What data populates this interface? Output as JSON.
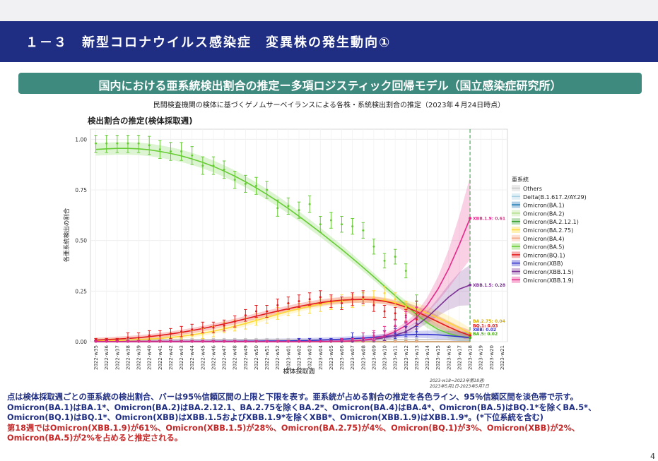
{
  "header": {
    "slide_title": "１－３　新型コロナウイルス感染症　変異株の発生動向①",
    "subtitle": "国内における亜系統検出割合の推定ー多項ロジスティック回帰モデル（国立感染症研究所）",
    "caption": "民間検査機関の検体に基づくゲノムサーベイランスによる各株・系統検出割合の推定（2023年４月24日時点）"
  },
  "chart_data": {
    "type": "line",
    "title": "検出割合の推定(検体採取週)",
    "xlabel": "検体採取週",
    "ylabel": "各亜系統検出の割合",
    "ylim": [
      0,
      1.05
    ],
    "yticks": [
      0.0,
      0.25,
      0.5,
      0.75,
      1.0
    ],
    "ytick_labels": [
      "0.00",
      "0.25",
      "0.50",
      "0.75",
      "1.00"
    ],
    "weeks": [
      "2022-w35",
      "2022-w36",
      "2022-w37",
      "2022-w38",
      "2022-w39",
      "2022-w40",
      "2022-w41",
      "2022-w42",
      "2022-w43",
      "2022-w44",
      "2022-w45",
      "2022-w46",
      "2022-w47",
      "2022-w48",
      "2022-w49",
      "2022-w50",
      "2022-w51",
      "2022-w52",
      "2023-w01",
      "2023-w02",
      "2023-w03",
      "2023-w04",
      "2023-w05",
      "2023-w06",
      "2023-w07",
      "2023-w08",
      "2023-w09",
      "2023-w10",
      "2023-w11",
      "2023-w12",
      "2023-w13",
      "2023-w14",
      "2023-w15",
      "2023-w16",
      "2023-w17",
      "2023-w18",
      "2023-w19",
      "2023-w20",
      "2023-w21"
    ],
    "observed_weeks_count": 31,
    "vline_week": "2023-w18",
    "vline_note_1": "2023-w18=2023年第18週:",
    "vline_note_2": "2023年5月1日-2023年5月7日",
    "legend_title": "亜系統",
    "series": [
      {
        "name": "Others",
        "color": "#c7c7c7",
        "estimate": [
          0.01,
          0.01,
          0.01,
          0.01,
          0.01,
          0.01,
          0.01,
          0.01,
          0.01,
          0.01,
          0.01,
          0.01,
          0.01,
          0.01,
          0.01,
          0.01,
          0.01,
          0.01,
          0.01,
          0.01,
          0.01,
          0.01,
          0.01,
          0.01,
          0.01,
          0.01,
          0.01,
          0.01,
          0.01,
          0.01,
          0.01,
          0.01,
          0.01,
          0.01,
          0.01,
          0.01
        ],
        "observed": [
          0.01,
          0.01,
          0.01,
          0.01,
          0.01,
          0.01,
          0.01,
          0.01,
          0.01,
          0.01,
          0.01,
          0.01,
          0.01,
          0.01,
          0.01,
          0.01,
          0.01,
          0.01,
          0.01,
          0.01,
          0.01,
          0.01,
          0.01,
          0.01,
          0.01,
          0.01,
          0.01,
          0.01,
          0.01,
          0.01,
          0.01
        ]
      },
      {
        "name": "Delta(B.1.617.2/AY.29)",
        "color": "#a6cee3",
        "estimate": [
          0,
          0,
          0,
          0,
          0,
          0,
          0,
          0,
          0,
          0,
          0,
          0,
          0,
          0,
          0,
          0,
          0,
          0,
          0,
          0,
          0,
          0,
          0,
          0,
          0,
          0,
          0,
          0,
          0,
          0,
          0,
          0,
          0,
          0,
          0,
          0
        ],
        "observed": [
          0,
          0,
          0,
          0,
          0,
          0,
          0,
          0,
          0,
          0,
          0,
          0,
          0,
          0,
          0,
          0,
          0,
          0,
          0,
          0,
          0,
          0,
          0,
          0,
          0,
          0,
          0,
          0,
          0,
          0,
          0
        ]
      },
      {
        "name": "Omicron(BA.1)",
        "color": "#1f78b4",
        "estimate": [
          0,
          0,
          0,
          0,
          0,
          0,
          0,
          0,
          0,
          0,
          0,
          0,
          0,
          0,
          0,
          0,
          0,
          0,
          0,
          0,
          0,
          0,
          0,
          0,
          0,
          0,
          0,
          0,
          0,
          0,
          0,
          0,
          0,
          0,
          0,
          0
        ],
        "observed": [
          0,
          0,
          0,
          0,
          0,
          0,
          0,
          0,
          0,
          0,
          0,
          0,
          0,
          0,
          0,
          0,
          0,
          0,
          0,
          0,
          0,
          0,
          0,
          0,
          0,
          0,
          0,
          0,
          0,
          0,
          0
        ]
      },
      {
        "name": "Omicron(BA.2)",
        "color": "#b2df8a",
        "estimate": [
          0,
          0,
          0,
          0,
          0,
          0,
          0,
          0,
          0,
          0,
          0,
          0,
          0,
          0,
          0,
          0,
          0,
          0,
          0,
          0,
          0,
          0,
          0,
          0,
          0,
          0,
          0,
          0,
          0,
          0,
          0,
          0,
          0,
          0,
          0,
          0
        ],
        "observed": [
          0,
          0,
          0,
          0,
          0,
          0,
          0,
          0,
          0,
          0,
          0,
          0,
          0,
          0,
          0,
          0,
          0,
          0,
          0,
          0,
          0,
          0,
          0,
          0,
          0,
          0,
          0,
          0,
          0,
          0,
          0
        ]
      },
      {
        "name": "Omicron(BA.2.12.1)",
        "color": "#33a02c",
        "estimate": [
          0,
          0,
          0,
          0,
          0,
          0,
          0,
          0,
          0,
          0,
          0,
          0,
          0,
          0,
          0,
          0,
          0,
          0,
          0,
          0,
          0,
          0,
          0,
          0,
          0,
          0,
          0,
          0,
          0,
          0,
          0,
          0,
          0,
          0,
          0,
          0
        ],
        "observed": [
          0,
          0,
          0,
          0,
          0,
          0,
          0,
          0,
          0,
          0,
          0,
          0,
          0,
          0,
          0,
          0,
          0,
          0,
          0,
          0,
          0,
          0,
          0,
          0,
          0,
          0,
          0,
          0,
          0,
          0,
          0
        ]
      },
      {
        "name": "Omicron(BA.2.75)",
        "color": "#fdd835",
        "estimate": [
          0.004,
          0.005,
          0.006,
          0.008,
          0.01,
          0.013,
          0.016,
          0.021,
          0.027,
          0.034,
          0.042,
          0.052,
          0.063,
          0.076,
          0.09,
          0.105,
          0.12,
          0.135,
          0.15,
          0.163,
          0.175,
          0.186,
          0.195,
          0.202,
          0.207,
          0.209,
          0.208,
          0.203,
          0.194,
          0.18,
          0.162,
          0.141,
          0.118,
          0.094,
          0.069,
          0.04
        ],
        "observed": [
          0.0,
          0.0,
          0.0,
          0.0,
          0.01,
          0.01,
          0.01,
          0.02,
          0.02,
          0.03,
          0.04,
          0.05,
          0.07,
          0.08,
          0.09,
          0.11,
          0.12,
          0.14,
          0.16,
          0.16,
          0.17,
          0.18,
          0.19,
          0.2,
          0.2,
          0.21,
          0.22,
          0.24,
          0.21,
          0.17,
          0.14
        ]
      },
      {
        "name": "Omicron(BA.4)",
        "color": "#f4a582",
        "estimate": [
          0,
          0,
          0,
          0,
          0,
          0,
          0,
          0,
          0,
          0,
          0,
          0,
          0,
          0,
          0,
          0,
          0,
          0,
          0,
          0,
          0,
          0,
          0,
          0,
          0,
          0,
          0,
          0,
          0,
          0,
          0,
          0,
          0,
          0,
          0,
          0
        ],
        "observed": [
          0,
          0,
          0,
          0,
          0,
          0,
          0,
          0,
          0,
          0,
          0,
          0,
          0,
          0,
          0,
          0,
          0,
          0,
          0,
          0,
          0,
          0,
          0,
          0,
          0,
          0,
          0,
          0,
          0,
          0,
          0
        ]
      },
      {
        "name": "Omicron(BA.5)",
        "color": "#66cc33",
        "estimate": [
          0.95,
          0.953,
          0.955,
          0.955,
          0.953,
          0.948,
          0.94,
          0.93,
          0.918,
          0.903,
          0.886,
          0.866,
          0.843,
          0.818,
          0.79,
          0.76,
          0.728,
          0.694,
          0.658,
          0.62,
          0.58,
          0.54,
          0.498,
          0.456,
          0.412,
          0.367,
          0.321,
          0.274,
          0.227,
          0.18,
          0.134,
          0.093,
          0.061,
          0.04,
          0.027,
          0.02
        ],
        "observed": [
          0.98,
          0.98,
          0.98,
          0.98,
          0.98,
          0.97,
          0.95,
          0.94,
          0.94,
          0.92,
          0.87,
          0.87,
          0.85,
          0.8,
          0.78,
          0.77,
          0.75,
          0.66,
          0.67,
          0.65,
          0.68,
          0.58,
          0.6,
          0.58,
          0.57,
          0.55,
          0.47,
          0.4,
          0.42,
          0.35,
          0.2
        ]
      },
      {
        "name": "Omicron(BQ.1)",
        "color": "#e31a1c",
        "estimate": [
          0.008,
          0.01,
          0.013,
          0.016,
          0.02,
          0.025,
          0.031,
          0.038,
          0.046,
          0.055,
          0.065,
          0.076,
          0.088,
          0.1,
          0.113,
          0.126,
          0.139,
          0.151,
          0.163,
          0.174,
          0.184,
          0.193,
          0.2,
          0.205,
          0.208,
          0.209,
          0.207,
          0.2,
          0.188,
          0.171,
          0.149,
          0.124,
          0.098,
          0.073,
          0.05,
          0.03
        ],
        "observed": [
          0.01,
          0.01,
          0.01,
          0.02,
          0.02,
          0.03,
          0.03,
          0.04,
          0.05,
          0.06,
          0.07,
          0.07,
          0.08,
          0.1,
          0.13,
          0.15,
          0.15,
          0.18,
          0.19,
          0.2,
          0.21,
          0.22,
          0.2,
          0.19,
          0.21,
          0.22,
          0.18,
          0.15,
          0.14,
          0.13,
          0.11
        ]
      },
      {
        "name": "Omicron(XBB)",
        "color": "#3333cc",
        "estimate": [
          0,
          0,
          0,
          0,
          0,
          0,
          0,
          0,
          0,
          0,
          0,
          0.001,
          0.001,
          0.001,
          0.002,
          0.002,
          0.003,
          0.003,
          0.004,
          0.005,
          0.006,
          0.008,
          0.01,
          0.012,
          0.015,
          0.018,
          0.022,
          0.026,
          0.03,
          0.034,
          0.036,
          0.036,
          0.034,
          0.03,
          0.025,
          0.02
        ],
        "observed": [
          0,
          0,
          0,
          0,
          0,
          0,
          0,
          0,
          0,
          0,
          0,
          0,
          0,
          0,
          0,
          0,
          0,
          0,
          0,
          0.01,
          0.01,
          0.01,
          0.01,
          0.01,
          0.02,
          0.02,
          0.02,
          0.03,
          0.04,
          0.05,
          0.05
        ]
      },
      {
        "name": "Omicron(XBB.1.5)",
        "color": "#7b3294",
        "estimate": [
          0,
          0,
          0,
          0,
          0,
          0,
          0,
          0,
          0,
          0,
          0,
          0,
          0,
          0,
          0,
          0,
          0,
          0,
          0,
          0,
          0,
          0,
          0.001,
          0.002,
          0.004,
          0.007,
          0.012,
          0.02,
          0.032,
          0.05,
          0.08,
          0.12,
          0.17,
          0.22,
          0.26,
          0.28
        ],
        "observed": [
          0,
          0,
          0,
          0,
          0,
          0,
          0,
          0,
          0,
          0,
          0,
          0,
          0,
          0,
          0,
          0,
          0,
          0,
          0,
          0,
          0,
          0,
          0,
          0,
          0,
          0.01,
          0.02,
          0.03,
          0.05,
          0.07,
          0.09
        ]
      },
      {
        "name": "Omicron(XBB.1.9)",
        "color": "#e7298a",
        "estimate": [
          0,
          0,
          0,
          0,
          0,
          0,
          0,
          0,
          0,
          0,
          0,
          0,
          0,
          0,
          0,
          0,
          0,
          0,
          0,
          0,
          0,
          0,
          0.001,
          0.002,
          0.004,
          0.008,
          0.015,
          0.028,
          0.05,
          0.08,
          0.12,
          0.18,
          0.26,
          0.36,
          0.48,
          0.61
        ],
        "observed": [
          0,
          0,
          0,
          0,
          0,
          0,
          0,
          0,
          0,
          0,
          0,
          0,
          0,
          0,
          0,
          0,
          0,
          0,
          0,
          0,
          0,
          0,
          0,
          0.01,
          0.01,
          0.02,
          0.03,
          0.05,
          0.08,
          0.12,
          0.17
        ]
      }
    ],
    "end_labels": [
      {
        "text": "XBB.1.9: 0.61",
        "value": 0.61,
        "color": "#e7298a"
      },
      {
        "text": "XBB.1.5: 0.28",
        "value": 0.28,
        "color": "#7b3294"
      },
      {
        "text": "BA.2.75: 0.04",
        "value": 0.04,
        "color": "#d4b106"
      },
      {
        "text": "BQ.1: 0.03",
        "value": 0.03,
        "color": "#e31a1c"
      },
      {
        "text": "XBB: 0.02",
        "value": 0.02,
        "color": "#3333cc"
      },
      {
        "text": "BA.5: 0.02",
        "value": 0.02,
        "color": "#4caf1a"
      }
    ]
  },
  "notes": {
    "line1": "点は検体採取週ごとの亜系統の検出割合、バーは95％信頼区間の上限と下限を表す。亜系統が占める割合の推定を各色ライン、95％信頼区間を淡色帯で示す。",
    "line2": "Omicron(BA.1)はBA.1*、Omicron(BA.2)はBA.2.12.1、BA.2.75を除くBA.2*、Omicron(BA.4)はBA.4*、Omicron(BA.5)はBQ.1*を除くBA.5*、",
    "line3": "Omicron(BQ.1)はBQ.1*、Omicron(XBB)はXBB.1.5およびXBB.1.9*を除くXBB*、Omicron(XBB.1.9)はXBB.1.9*。(*下位系統を含む)",
    "line4": "第18週ではOmicron(XBB.1.9)が61%、Omicron(XBB.1.5)が28%、Omicron(BA.2.75)が4%、Omicron(BQ.1)が3%、Omicron(XBB)が2%、",
    "line5": "Omicron(BA.5)が2%を占めると推定される。"
  },
  "page_number": "4"
}
